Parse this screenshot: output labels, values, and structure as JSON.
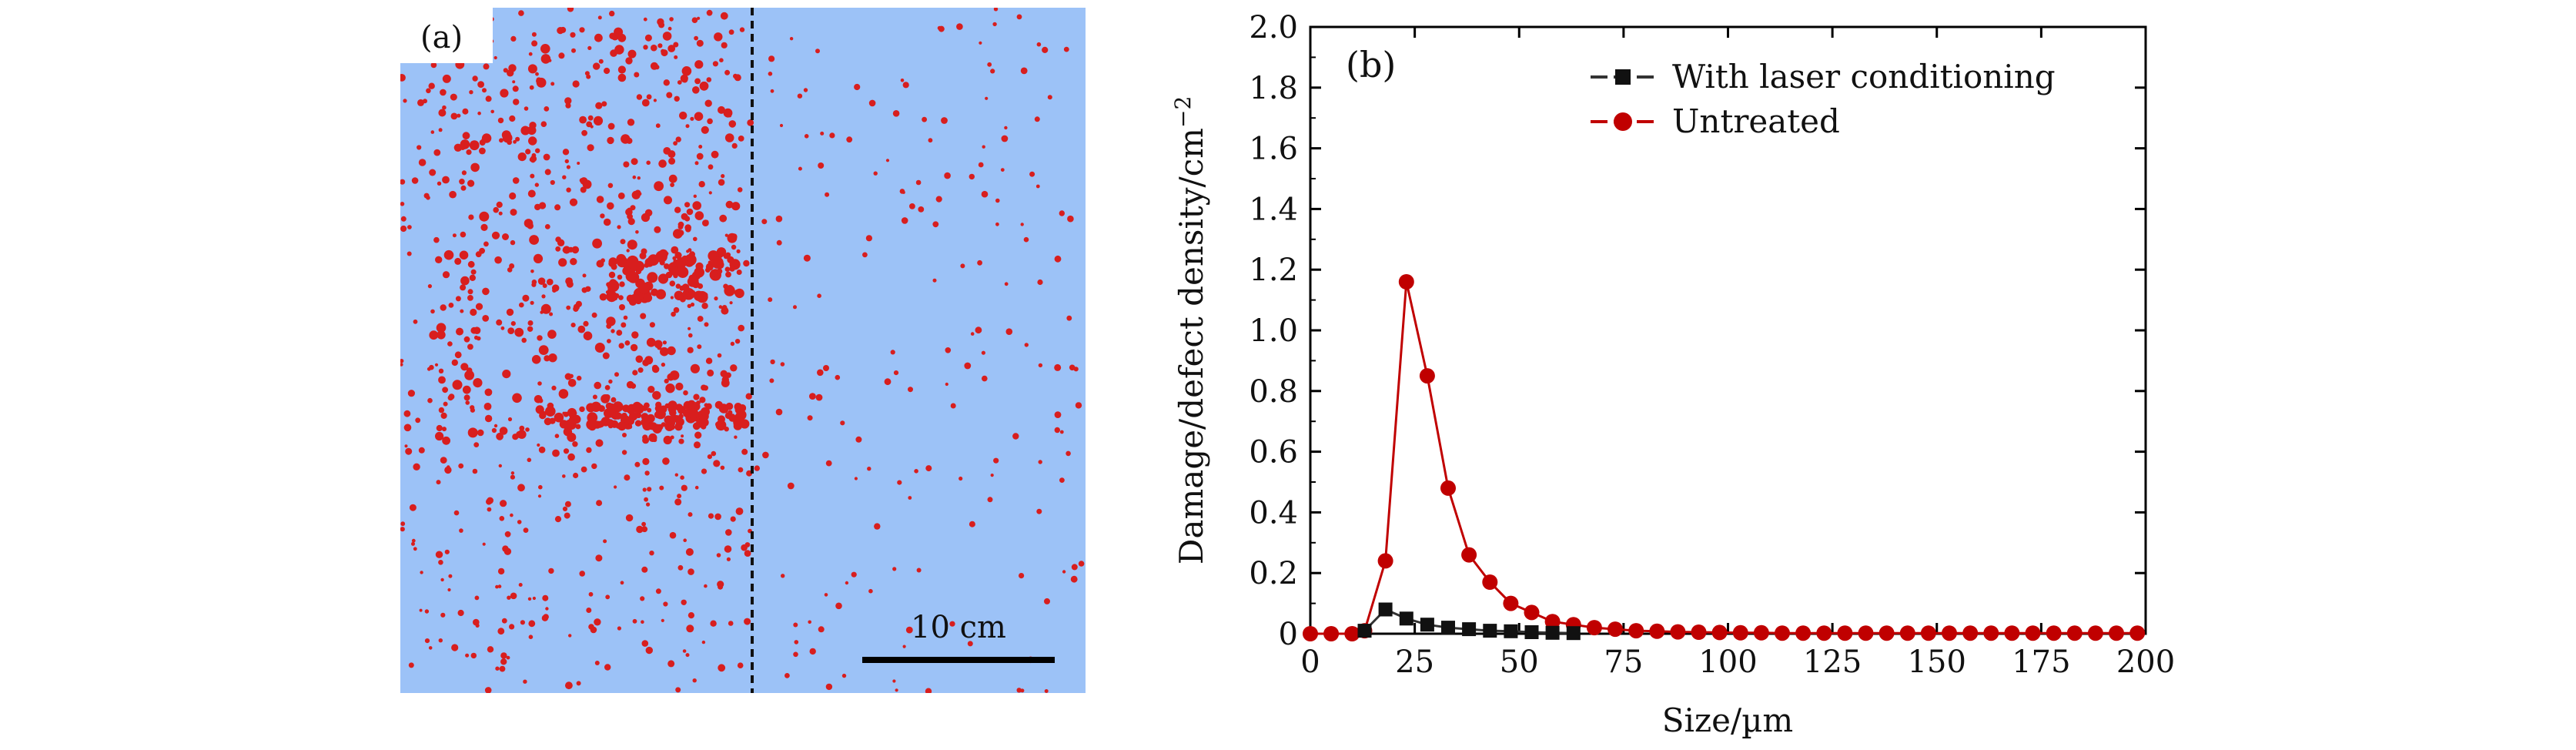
{
  "panel_a": {
    "label": "(a)",
    "scale_bar_label": "10 cm",
    "colors": {
      "background": "#9cc2f7",
      "defect": "#d81e1e",
      "divider": "#111111"
    }
  },
  "chart_data": {
    "type": "line",
    "panel_label": "(b)",
    "xlabel": "Size/µm",
    "ylabel": "Damage/defect density/cm",
    "ylabel_superscript": "−2",
    "xlim": [
      0,
      200
    ],
    "ylim": [
      0,
      2.0
    ],
    "xticks": [
      0,
      25,
      50,
      75,
      100,
      125,
      150,
      175,
      200
    ],
    "yticks": [
      0,
      0.2,
      0.4,
      0.6,
      0.8,
      1.0,
      1.2,
      1.4,
      1.6,
      1.8,
      2.0
    ],
    "ytick_labels": [
      "0",
      "0.2",
      "0.4",
      "0.6",
      "0.8",
      "1.0",
      "1.2",
      "1.4",
      "1.6",
      "1.8",
      "2.0"
    ],
    "legend_position": "top-right",
    "series": [
      {
        "name": "With laser conditioning",
        "color": "#333333",
        "marker": "square",
        "x": [
          13,
          18,
          23,
          28,
          33,
          38,
          43,
          48,
          53,
          58,
          63
        ],
        "y": [
          0.01,
          0.08,
          0.05,
          0.03,
          0.02,
          0.015,
          0.01,
          0.008,
          0.005,
          0.003,
          0.002
        ]
      },
      {
        "name": "Untreated",
        "color": "#c00000",
        "marker": "circle",
        "x": [
          0,
          5,
          10,
          13,
          18,
          23,
          28,
          33,
          38,
          43,
          48,
          53,
          58,
          63,
          68,
          73,
          78,
          83,
          88,
          93,
          98,
          103,
          108,
          113,
          118,
          123,
          128,
          133,
          138,
          143,
          148,
          153,
          158,
          163,
          168,
          173,
          178,
          183,
          188,
          193,
          198
        ],
        "y": [
          0,
          0,
          0,
          0.01,
          0.24,
          1.16,
          0.85,
          0.48,
          0.26,
          0.17,
          0.1,
          0.07,
          0.04,
          0.03,
          0.02,
          0.015,
          0.01,
          0.008,
          0.006,
          0.005,
          0.004,
          0.003,
          0.003,
          0.002,
          0.002,
          0.002,
          0.002,
          0.002,
          0.002,
          0.002,
          0.002,
          0.002,
          0.002,
          0.002,
          0.002,
          0.002,
          0.002,
          0.002,
          0.002,
          0.002,
          0.002
        ]
      }
    ]
  }
}
